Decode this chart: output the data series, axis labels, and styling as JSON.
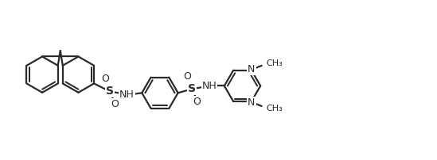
{
  "background_color": "#ffffff",
  "line_color": "#2a2a2a",
  "line_width": 1.6,
  "font_size": 9,
  "figsize": [
    5.49,
    2.02
  ],
  "dpi": 100,
  "xlim": [
    0,
    549
  ],
  "ylim": [
    0,
    202
  ]
}
